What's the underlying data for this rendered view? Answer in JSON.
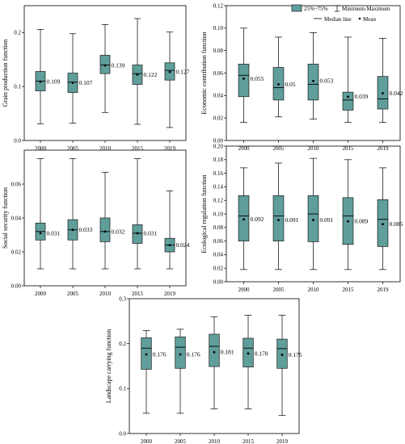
{
  "style": {
    "box_fill": "#5f9e9a",
    "box_stroke": "#1a1a1a",
    "line_color": "#000000"
  },
  "legend": {
    "iqr_label": "25%~75%",
    "range_label": "Minimum-Maximum",
    "median_label": "Median line",
    "mean_label": "Mean"
  },
  "chart_data": [
    {
      "type": "box",
      "categories": [
        "2000",
        "2005",
        "2010",
        "2015",
        "2019"
      ],
      "ylabel": "Grain production function",
      "ylim": [
        0,
        0.25
      ],
      "yticks": [
        "0.0",
        "0.1",
        "0.2"
      ],
      "tick_values": [
        0,
        0.1,
        0.2
      ],
      "boxes": [
        {
          "min": 0.031,
          "q1": 0.092,
          "median": 0.11,
          "q3": 0.128,
          "max": 0.206,
          "mean": 0.109,
          "label": "0.109"
        },
        {
          "min": 0.032,
          "q1": 0.089,
          "median": 0.108,
          "q3": 0.125,
          "max": 0.198,
          "mean": 0.107,
          "label": "0.107"
        },
        {
          "min": 0.052,
          "q1": 0.124,
          "median": 0.14,
          "q3": 0.158,
          "max": 0.215,
          "mean": 0.139,
          "label": "0.139"
        },
        {
          "min": 0.03,
          "q1": 0.104,
          "median": 0.124,
          "q3": 0.14,
          "max": 0.226,
          "mean": 0.122,
          "label": "0.122"
        },
        {
          "min": 0.024,
          "q1": 0.112,
          "median": 0.13,
          "q3": 0.144,
          "max": 0.201,
          "mean": 0.127,
          "label": "0.127"
        }
      ]
    },
    {
      "type": "box",
      "categories": [
        "2000",
        "2005",
        "2010",
        "2015",
        "2019"
      ],
      "ylabel": "Economic contribution function",
      "ylim": [
        0,
        0.12
      ],
      "yticks": [
        "0.00",
        "0.02",
        "0.04",
        "0.06",
        "0.08",
        "0.10",
        "0.12"
      ],
      "tick_values": [
        0,
        0.02,
        0.04,
        0.06,
        0.08,
        0.1,
        0.12
      ],
      "boxes": [
        {
          "min": 0.016,
          "q1": 0.039,
          "median": 0.058,
          "q3": 0.068,
          "max": 0.1,
          "mean": 0.055,
          "label": "0.055"
        },
        {
          "min": 0.021,
          "q1": 0.036,
          "median": 0.047,
          "q3": 0.065,
          "max": 0.092,
          "mean": 0.05,
          "label": "0.05"
        },
        {
          "min": 0.019,
          "q1": 0.036,
          "median": 0.05,
          "q3": 0.068,
          "max": 0.096,
          "mean": 0.053,
          "label": "0.053"
        },
        {
          "min": 0.016,
          "q1": 0.027,
          "median": 0.036,
          "q3": 0.043,
          "max": 0.092,
          "mean": 0.039,
          "label": "0.039"
        },
        {
          "min": 0.016,
          "q1": 0.028,
          "median": 0.037,
          "q3": 0.057,
          "max": 0.091,
          "mean": 0.042,
          "label": "0.042"
        }
      ]
    },
    {
      "type": "box",
      "categories": [
        "2000",
        "2005",
        "2010",
        "2015",
        "2019"
      ],
      "ylabel": "Social security function",
      "ylim": [
        0,
        0.08
      ],
      "yticks": [
        "0.00",
        "0.02",
        "0.04",
        "0.06"
      ],
      "tick_values": [
        0,
        0.02,
        0.04,
        0.06
      ],
      "boxes": [
        {
          "min": 0.01,
          "q1": 0.027,
          "median": 0.032,
          "q3": 0.037,
          "max": 0.075,
          "mean": 0.031,
          "label": "0.031"
        },
        {
          "min": 0.01,
          "q1": 0.027,
          "median": 0.033,
          "q3": 0.039,
          "max": 0.075,
          "mean": 0.033,
          "label": "0.033"
        },
        {
          "min": 0.01,
          "q1": 0.026,
          "median": 0.032,
          "q3": 0.04,
          "max": 0.067,
          "mean": 0.032,
          "label": "0.032"
        },
        {
          "min": 0.01,
          "q1": 0.025,
          "median": 0.031,
          "q3": 0.036,
          "max": 0.075,
          "mean": 0.031,
          "label": "0.031"
        },
        {
          "min": 0.01,
          "q1": 0.02,
          "median": 0.024,
          "q3": 0.028,
          "max": 0.056,
          "mean": 0.024,
          "label": "0.024"
        }
      ]
    },
    {
      "type": "box",
      "categories": [
        "2000",
        "2005",
        "2010",
        "2015",
        "2019"
      ],
      "ylabel": "Ecological regulation function",
      "ylim": [
        0,
        0.2
      ],
      "yticks": [
        "0.00",
        "0.02",
        "0.04",
        "0.06",
        "0.08",
        "0.10",
        "0.12",
        "0.14",
        "0.16",
        "0.18",
        "0.20"
      ],
      "tick_values": [
        0,
        0.02,
        0.04,
        0.06,
        0.08,
        0.1,
        0.12,
        0.14,
        0.16,
        0.18,
        0.2
      ],
      "boxes": [
        {
          "min": 0.018,
          "q1": 0.06,
          "median": 0.097,
          "q3": 0.127,
          "max": 0.168,
          "mean": 0.092,
          "label": "0.092"
        },
        {
          "min": 0.018,
          "q1": 0.06,
          "median": 0.097,
          "q3": 0.127,
          "max": 0.175,
          "mean": 0.091,
          "label": "0.091"
        },
        {
          "min": 0.018,
          "q1": 0.059,
          "median": 0.1,
          "q3": 0.127,
          "max": 0.182,
          "mean": 0.091,
          "label": "0.091"
        },
        {
          "min": 0.018,
          "q1": 0.055,
          "median": 0.097,
          "q3": 0.124,
          "max": 0.18,
          "mean": 0.089,
          "label": "0.089"
        },
        {
          "min": 0.018,
          "q1": 0.052,
          "median": 0.092,
          "q3": 0.121,
          "max": 0.168,
          "mean": 0.085,
          "label": "0.085"
        }
      ]
    },
    {
      "type": "box",
      "categories": [
        "2000",
        "2005",
        "2010",
        "2015",
        "2019"
      ],
      "ylabel": "Landscape carrying function",
      "ylim": [
        0,
        0.3
      ],
      "yticks": [
        "0.0",
        "0.1",
        "0.2",
        "0.3"
      ],
      "tick_values": [
        0,
        0.1,
        0.2,
        0.3
      ],
      "boxes": [
        {
          "min": 0.045,
          "q1": 0.143,
          "median": 0.19,
          "q3": 0.213,
          "max": 0.229,
          "mean": 0.176,
          "label": "0.176"
        },
        {
          "min": 0.045,
          "q1": 0.145,
          "median": 0.192,
          "q3": 0.215,
          "max": 0.232,
          "mean": 0.176,
          "label": "0.176"
        },
        {
          "min": 0.055,
          "q1": 0.149,
          "median": 0.194,
          "q3": 0.221,
          "max": 0.26,
          "mean": 0.181,
          "label": "0.181"
        },
        {
          "min": 0.055,
          "q1": 0.148,
          "median": 0.19,
          "q3": 0.212,
          "max": 0.263,
          "mean": 0.178,
          "label": "0.178"
        },
        {
          "min": 0.04,
          "q1": 0.145,
          "median": 0.189,
          "q3": 0.21,
          "max": 0.263,
          "mean": 0.175,
          "label": "0.175"
        }
      ]
    }
  ]
}
